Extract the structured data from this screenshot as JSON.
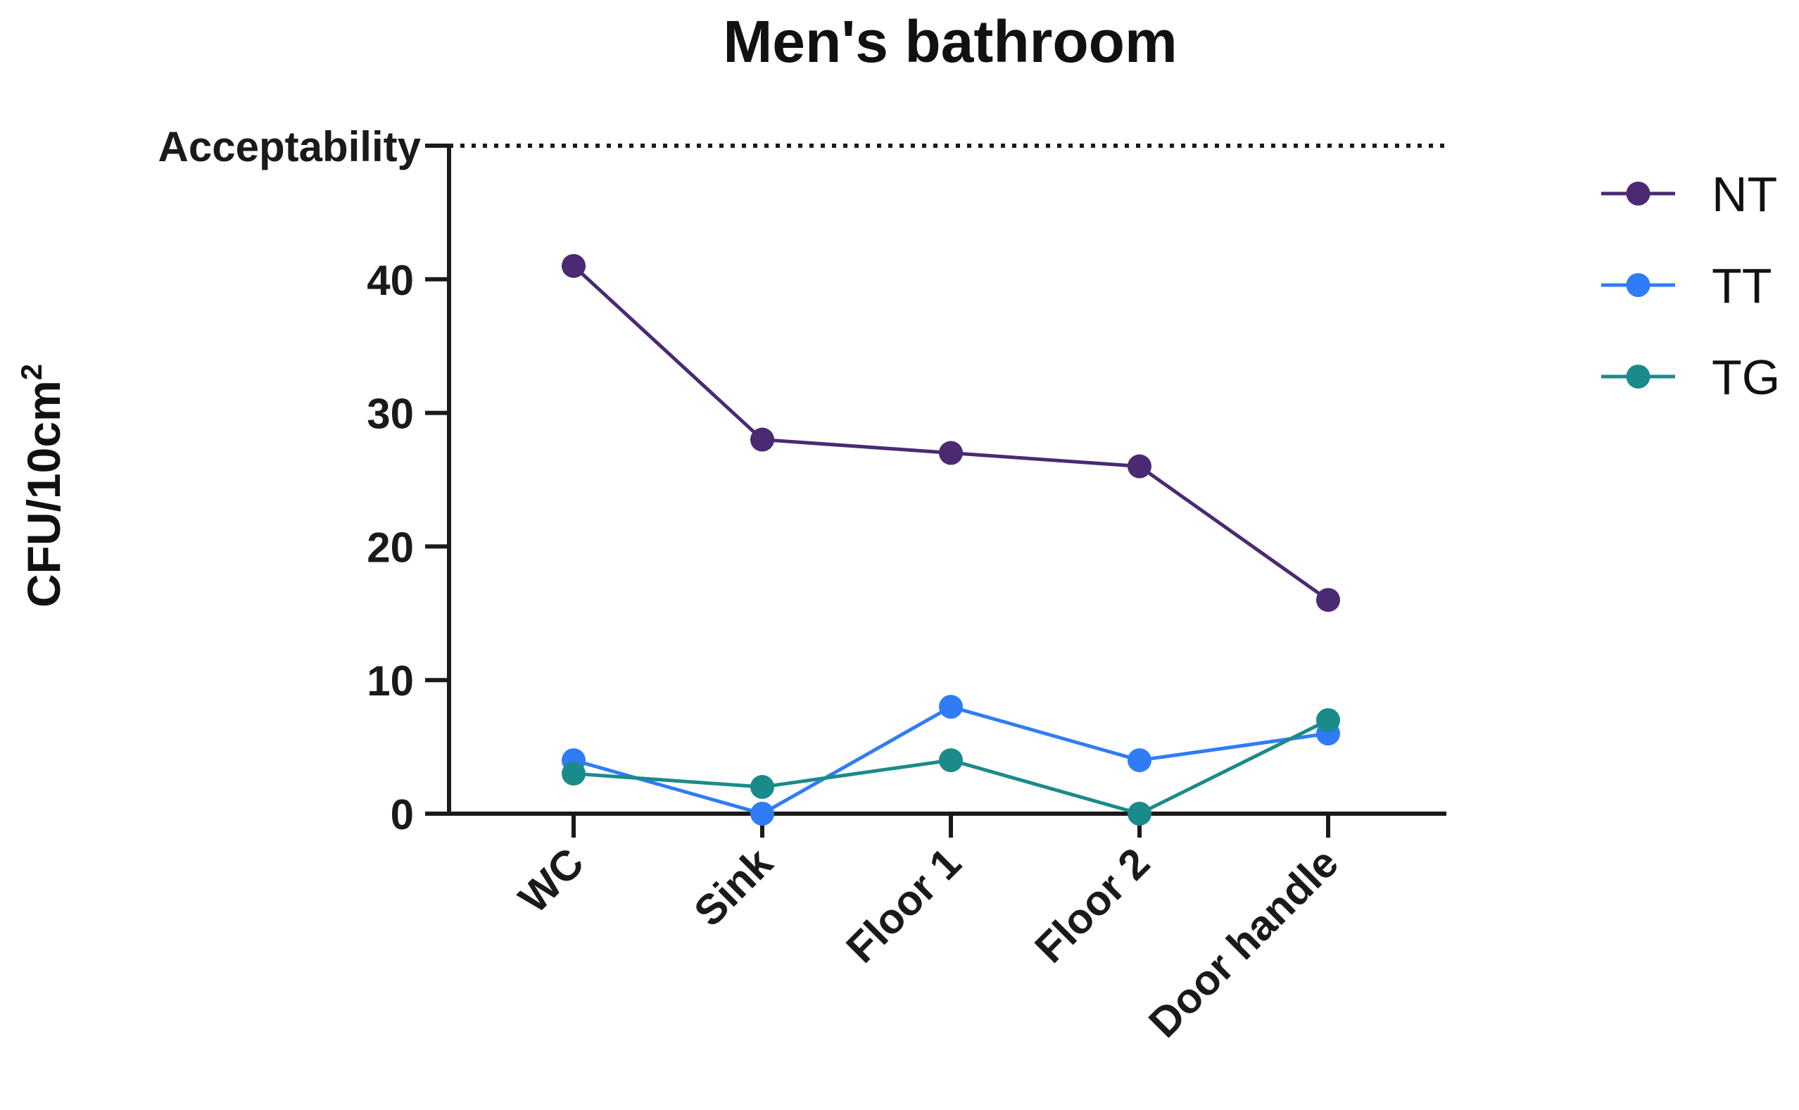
{
  "chart_data": {
    "type": "line",
    "title": "Men's bathroom",
    "ylabel": "CFU/10cm",
    "ylabel_superscript": "2",
    "xlabel": "",
    "categories": [
      "WC",
      "Sink",
      "Floor 1",
      "Floor 2",
      "Door handle"
    ],
    "ylim": [
      0,
      50
    ],
    "yticks": [
      0,
      10,
      20,
      30,
      40
    ],
    "reference_line": {
      "value": 50,
      "label": "Acceptability",
      "style": "dotted"
    },
    "series": [
      {
        "name": "NT",
        "color": "#4a2a72",
        "values": [
          41,
          28,
          27,
          26,
          16
        ]
      },
      {
        "name": "TT",
        "color": "#2f7cf6",
        "values": [
          4,
          0,
          8,
          4,
          6
        ]
      },
      {
        "name": "TG",
        "color": "#1b8a8a",
        "values": [
          3,
          2,
          4,
          0,
          7
        ]
      }
    ],
    "legend_position": "right",
    "grid": false
  }
}
